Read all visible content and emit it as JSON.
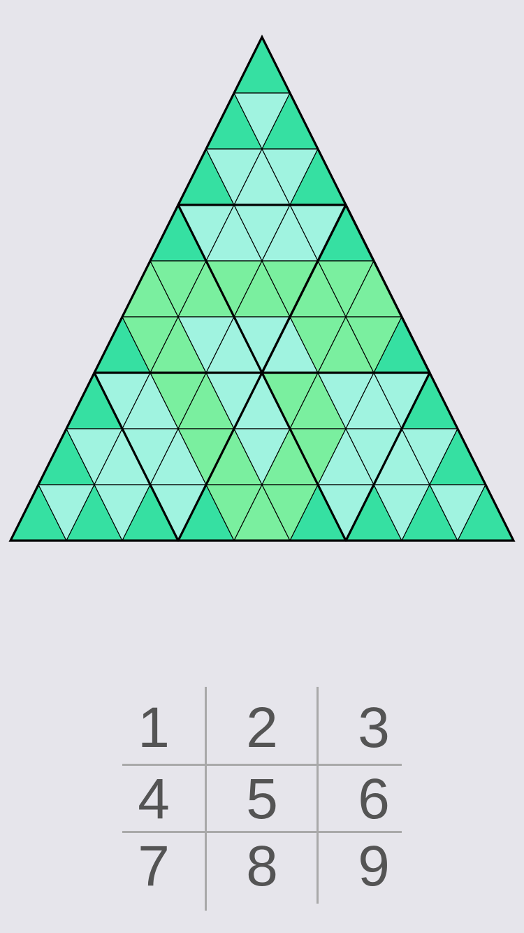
{
  "game": {
    "type": "triangular-sudoku",
    "grid_rows": 9,
    "colors": {
      "dark_cell": "#36e0a2",
      "light_cell": "#a0f3e0",
      "green_cell": "#7aef9f",
      "line": "#000000",
      "background": "#e6e5eb",
      "keypad_text": "#545454",
      "keypad_line": "#a9a9a9"
    },
    "cell_colors": [
      [
        "D"
      ],
      [
        "D",
        "L",
        "D"
      ],
      [
        "D",
        "L",
        "L",
        "L",
        "D"
      ],
      [
        "D",
        "L",
        "L",
        "L",
        "L",
        "L",
        "D"
      ],
      [
        "G",
        "G",
        "G",
        "G",
        "G",
        "G",
        "G",
        "G",
        "G"
      ],
      [
        "D",
        "G",
        "G",
        "L",
        "L",
        "L",
        "L",
        "G",
        "G",
        "G",
        "D"
      ],
      [
        "D",
        "L",
        "L",
        "G",
        "G",
        "L",
        "L",
        "G",
        "G",
        "L",
        "L",
        "L",
        "D"
      ],
      [
        "D",
        "L",
        "L",
        "L",
        "L",
        "G",
        "G",
        "L",
        "G",
        "G",
        "L",
        "L",
        "L",
        "L",
        "D"
      ],
      [
        "D",
        "L",
        "D",
        "L",
        "D",
        "L",
        "D",
        "G",
        "G",
        "G",
        "D",
        "L",
        "D",
        "L",
        "D",
        "L",
        "D"
      ]
    ]
  },
  "keypad": {
    "keys": [
      "1",
      "2",
      "3",
      "4",
      "5",
      "6",
      "7",
      "8",
      "9"
    ]
  }
}
